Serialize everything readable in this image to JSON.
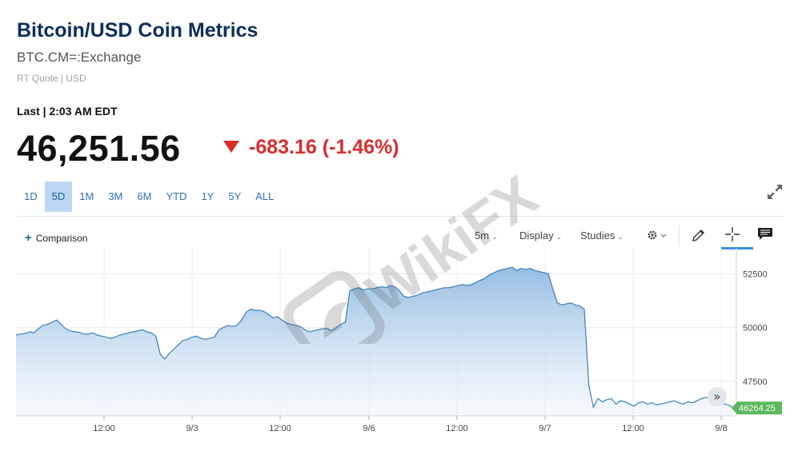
{
  "header": {
    "title": "Bitcoin/USD Coin Metrics",
    "symbol": "BTC.CM=:Exchange",
    "quote_meta": "RT Quote | USD",
    "last_label": "Last | 2:03 AM EDT",
    "price": "46,251.56",
    "change": "-683.16 (-1.46%)",
    "change_direction": "down",
    "down_color": "#d62d2d"
  },
  "tabs": [
    {
      "label": "1D",
      "active": false
    },
    {
      "label": "5D",
      "active": true
    },
    {
      "label": "1M",
      "active": false
    },
    {
      "label": "3M",
      "active": false
    },
    {
      "label": "6M",
      "active": false
    },
    {
      "label": "YTD",
      "active": false
    },
    {
      "label": "1Y",
      "active": false
    },
    {
      "label": "5Y",
      "active": false
    },
    {
      "label": "ALL",
      "active": false
    }
  ],
  "toolbar": {
    "comparison": "Comparison",
    "interval": "5m",
    "display": "Display",
    "studies": "Studies",
    "icons": [
      "gear-icon",
      "pencil-icon",
      "crosshair-icon",
      "comment-icon",
      "expand-icon"
    ]
  },
  "watermark": "WikiFX",
  "chart_data": {
    "type": "area",
    "x_tick_labels": [
      "12:00",
      "9/3",
      "12:00",
      "9/6",
      "12:00",
      "9/7",
      "12:00",
      "9/8"
    ],
    "y_ticks": [
      52500,
      50000,
      47500
    ],
    "ylim": [
      45900,
      53700
    ],
    "grid": true,
    "line_color": "#3a7fb8",
    "last_value_label": "46264.25",
    "last_value_color": "#5cb85c",
    "series": [
      {
        "values": [
          49650,
          49700,
          49720,
          49800,
          49760,
          49950,
          50100,
          50150,
          50250,
          50350,
          50150,
          49950,
          49850,
          49800,
          49780,
          49700,
          49700,
          49750,
          49650,
          49600,
          49550,
          49500,
          49560,
          49650,
          49700,
          49750,
          49800,
          49850,
          49900,
          49800,
          49750,
          49600,
          48750,
          48550,
          48800,
          49000,
          49200,
          49400,
          49450,
          49550,
          49600,
          49500,
          49450,
          49500,
          49550,
          49900,
          50000,
          50100,
          50050,
          50100,
          50350,
          50700,
          50850,
          50800,
          50800,
          50750,
          50600,
          50450,
          50500,
          50350,
          50200,
          50150,
          50100,
          50050,
          49900,
          49800,
          49850,
          49900,
          49950,
          49950,
          49850,
          50000,
          50150,
          50250,
          51700,
          51800,
          51850,
          51750,
          51800,
          51800,
          51850,
          51900,
          51850,
          51950,
          51900,
          51700,
          51450,
          51400,
          51450,
          51500,
          51600,
          51650,
          51700,
          51750,
          51800,
          51850,
          51850,
          51900,
          51950,
          52000,
          51950,
          52000,
          52100,
          52200,
          52300,
          52450,
          52550,
          52650,
          52700,
          52750,
          52800,
          52650,
          52750,
          52700,
          52750,
          52650,
          52600,
          52550,
          52500,
          51800,
          51150,
          51050,
          51100,
          51150,
          51050,
          51000,
          50850,
          47300,
          46300,
          46700,
          46550,
          46650,
          46700,
          46450,
          46600,
          46550,
          46450,
          46350,
          46500,
          46550,
          46450,
          46500,
          46400,
          46450,
          46500,
          46550,
          46600,
          46500,
          46450,
          46550,
          46500,
          46600,
          46700,
          46750,
          46700,
          46600,
          46550,
          46450,
          46400,
          46264.25
        ]
      }
    ]
  }
}
